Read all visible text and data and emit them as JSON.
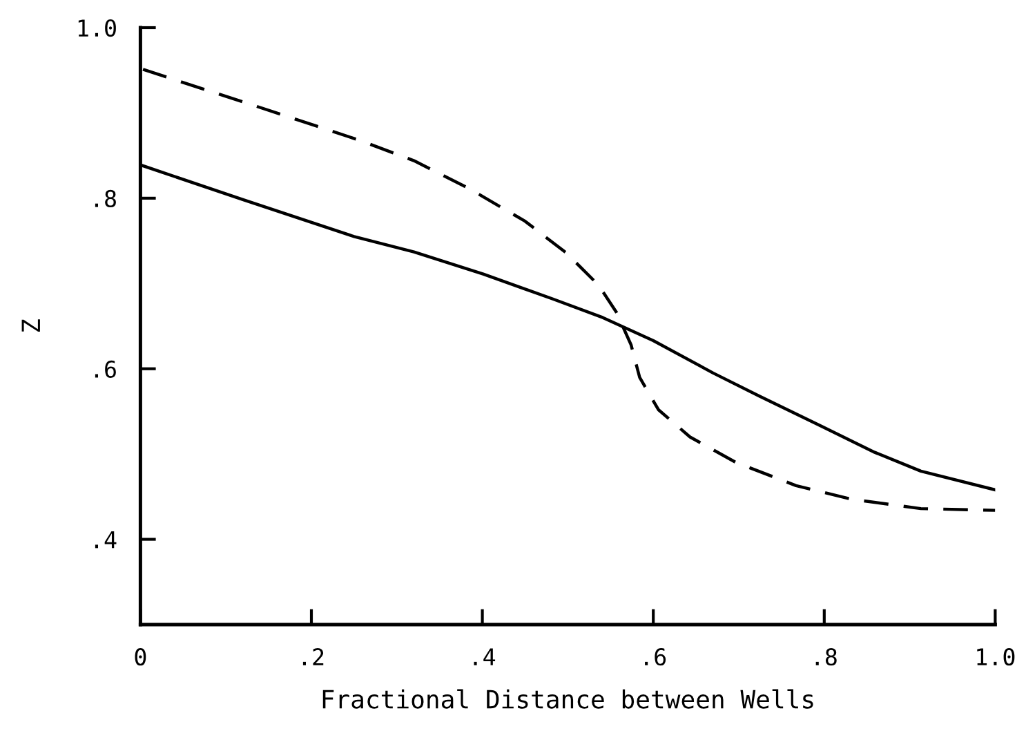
{
  "chart_data": {
    "type": "line",
    "xlabel": "Fractional Distance between Wells",
    "ylabel": "Z",
    "xlim": [
      0,
      1.0
    ],
    "ylim": [
      0.3,
      1.0
    ],
    "xticks": [
      {
        "value": 0,
        "label": "0"
      },
      {
        "value": 0.2,
        "label": ".2"
      },
      {
        "value": 0.4,
        "label": ".4"
      },
      {
        "value": 0.6,
        "label": ".6"
      },
      {
        "value": 0.8,
        "label": ".8"
      },
      {
        "value": 1.0,
        "label": "1.0"
      }
    ],
    "yticks": [
      {
        "value": 0.4,
        "label": ".4"
      },
      {
        "value": 0.6,
        "label": ".6"
      },
      {
        "value": 0.8,
        "label": ".8"
      },
      {
        "value": 1.0,
        "label": "1.0"
      }
    ],
    "marker": "none",
    "series": [
      {
        "color": "#000000",
        "line_style": "solid",
        "x": [
          0,
          0.121,
          0.25,
          0.32,
          0.401,
          0.482,
          0.541,
          0.6,
          0.67,
          0.724,
          0.794,
          0.859,
          0.913,
          1.0
        ],
        "values": [
          0.839,
          0.798,
          0.755,
          0.737,
          0.711,
          0.682,
          0.66,
          0.633,
          0.595,
          0.568,
          0.534,
          0.502,
          0.48,
          0.458
        ]
      },
      {
        "color": "#000000",
        "line_style": "dashed",
        "x": [
          0.003,
          0.126,
          0.256,
          0.32,
          0.385,
          0.45,
          0.498,
          0.536,
          0.557,
          0.574,
          0.584,
          0.606,
          0.643,
          0.697,
          0.767,
          0.832,
          0.913,
          1.0
        ],
        "values": [
          0.951,
          0.911,
          0.868,
          0.844,
          0.811,
          0.773,
          0.736,
          0.698,
          0.666,
          0.628,
          0.59,
          0.552,
          0.52,
          0.49,
          0.463,
          0.447,
          0.436,
          0.434
        ]
      }
    ]
  }
}
